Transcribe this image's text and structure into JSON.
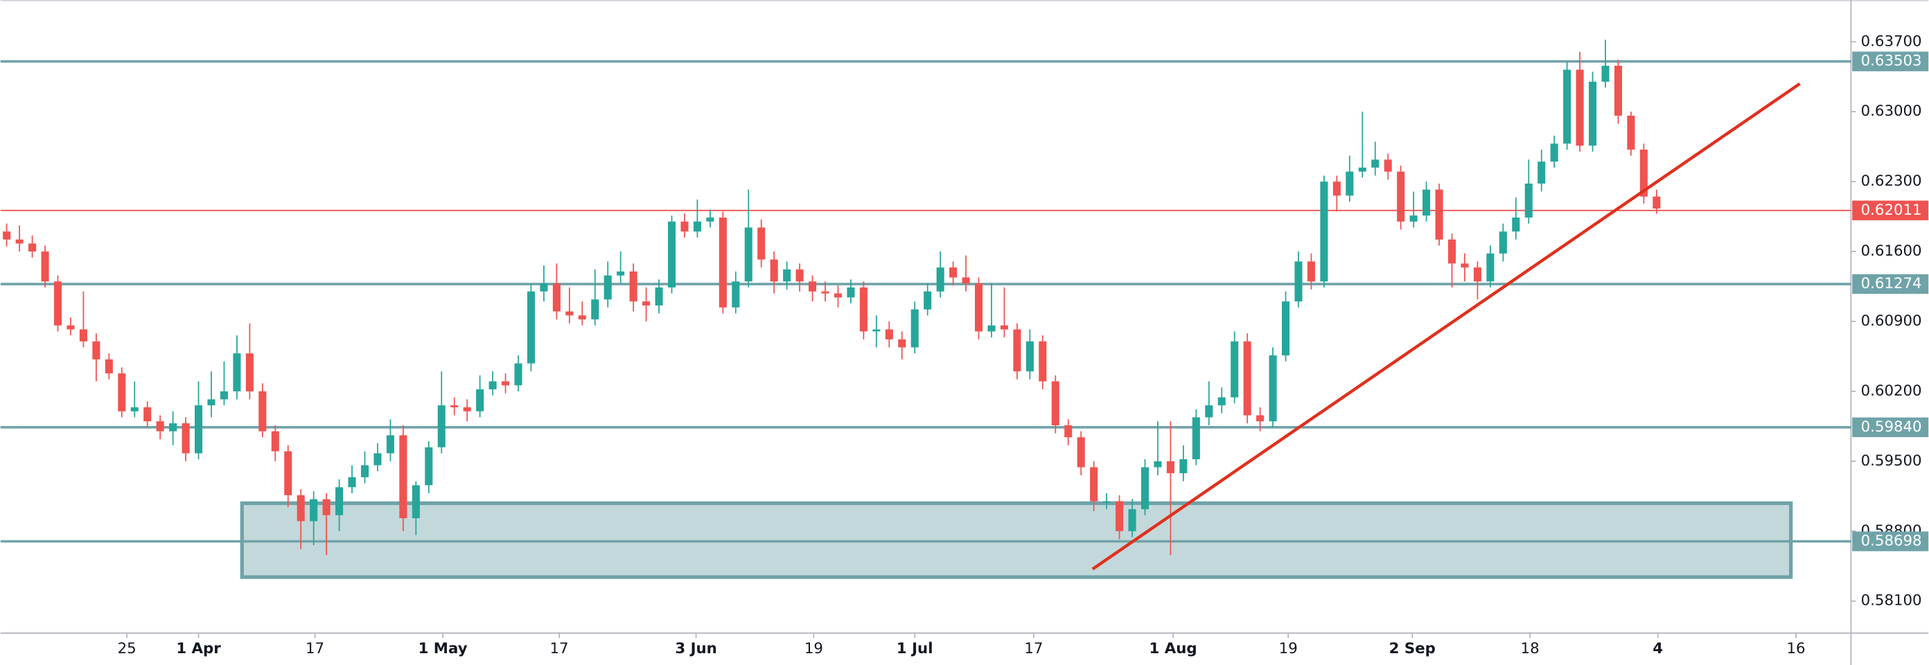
{
  "chart_data": {
    "type": "candlestick",
    "up_color": "#26a69a",
    "down_color": "#ef5350",
    "xlim": [
      -0.48,
      144.2
    ],
    "ylim": [
      0.5778,
      0.64118
    ],
    "xticks": [
      {
        "value": 9.4,
        "label": "25"
      },
      {
        "value": 15.0,
        "label": "1 Apr",
        "bold": true
      },
      {
        "value": 24.1,
        "label": "17"
      },
      {
        "value": 34.1,
        "label": "1 May",
        "bold": true
      },
      {
        "value": 43.2,
        "label": "17"
      },
      {
        "value": 53.9,
        "label": "3 Jun",
        "bold": true
      },
      {
        "value": 63.1,
        "label": "19"
      },
      {
        "value": 71.0,
        "label": "1 Jul",
        "bold": true
      },
      {
        "value": 80.3,
        "label": "17"
      },
      {
        "value": 91.2,
        "label": "1 Aug",
        "bold": true
      },
      {
        "value": 100.2,
        "label": "19"
      },
      {
        "value": 109.9,
        "label": "2 Sep",
        "bold": true
      },
      {
        "value": 119.1,
        "label": "18"
      },
      {
        "value": 129.1,
        "label": "4",
        "bold": true
      },
      {
        "value": 139.9,
        "label": "16"
      }
    ],
    "yticks": [
      {
        "value": 0.637,
        "label": "0.63700"
      },
      {
        "value": 0.63,
        "label": "0.63000"
      },
      {
        "value": 0.623,
        "label": "0.62300"
      },
      {
        "value": 0.616,
        "label": "0.61600"
      },
      {
        "value": 0.609,
        "label": "0.60900"
      },
      {
        "value": 0.602,
        "label": "0.60200"
      },
      {
        "value": 0.595,
        "label": "0.59500"
      },
      {
        "value": 0.588,
        "label": "0.58800"
      },
      {
        "value": 0.581,
        "label": "0.58100"
      }
    ],
    "levels": [
      {
        "value": 0.63503,
        "label": "0.63503",
        "color": "#6fa3a8"
      },
      {
        "value": 0.62011,
        "label": "0.62011",
        "color": "#ef5350"
      },
      {
        "value": 0.61274,
        "label": "0.61274",
        "color": "#6fa3a8"
      },
      {
        "value": 0.5984,
        "label": "0.59840",
        "color": "#6fa3a8"
      },
      {
        "value": 0.58698,
        "label": "0.58698",
        "color": "#6fa3a8"
      }
    ],
    "zone": {
      "x": [
        18.4,
        139.5
      ],
      "y": [
        0.5834,
        0.5908
      ],
      "color": "#6fa3a8"
    },
    "trendline": {
      "x": [
        84.9,
        140.2
      ],
      "y": [
        0.5842,
        0.6328
      ],
      "color": "#e0301e"
    },
    "ohlc": [
      [
        0.618,
        0.6188,
        0.6165,
        0.6172
      ],
      [
        0.6172,
        0.6186,
        0.616,
        0.6168
      ],
      [
        0.6168,
        0.6176,
        0.6154,
        0.616
      ],
      [
        0.616,
        0.6166,
        0.6124,
        0.613
      ],
      [
        0.613,
        0.6136,
        0.608,
        0.6086
      ],
      [
        0.6086,
        0.6094,
        0.6076,
        0.6082
      ],
      [
        0.6082,
        0.612,
        0.6064,
        0.607
      ],
      [
        0.607,
        0.6078,
        0.603,
        0.6052
      ],
      [
        0.6052,
        0.6058,
        0.6032,
        0.6038
      ],
      [
        0.6038,
        0.6044,
        0.5994,
        0.6
      ],
      [
        0.6,
        0.603,
        0.5994,
        0.6004
      ],
      [
        0.6004,
        0.601,
        0.5984,
        0.599
      ],
      [
        0.599,
        0.5996,
        0.5972,
        0.598
      ],
      [
        0.598,
        0.6,
        0.5966,
        0.5988
      ],
      [
        0.5988,
        0.5994,
        0.595,
        0.5958
      ],
      [
        0.5958,
        0.603,
        0.5952,
        0.6006
      ],
      [
        0.6006,
        0.604,
        0.5994,
        0.6012
      ],
      [
        0.6012,
        0.605,
        0.6006,
        0.602
      ],
      [
        0.602,
        0.6076,
        0.6012,
        0.6058
      ],
      [
        0.6058,
        0.6088,
        0.6012,
        0.602
      ],
      [
        0.602,
        0.6028,
        0.5974,
        0.598
      ],
      [
        0.598,
        0.5986,
        0.595,
        0.596
      ],
      [
        0.596,
        0.5966,
        0.5904,
        0.5916
      ],
      [
        0.5916,
        0.5922,
        0.5862,
        0.589
      ],
      [
        0.589,
        0.592,
        0.5866,
        0.5912
      ],
      [
        0.5912,
        0.5918,
        0.5856,
        0.5896
      ],
      [
        0.5896,
        0.5932,
        0.588,
        0.5924
      ],
      [
        0.5924,
        0.5946,
        0.5918,
        0.5934
      ],
      [
        0.5934,
        0.596,
        0.5928,
        0.5946
      ],
      [
        0.5946,
        0.5968,
        0.594,
        0.5958
      ],
      [
        0.5958,
        0.5992,
        0.595,
        0.5976
      ],
      [
        0.5976,
        0.5986,
        0.588,
        0.5893
      ],
      [
        0.5893,
        0.593,
        0.5876,
        0.5926
      ],
      [
        0.5926,
        0.597,
        0.5918,
        0.5964
      ],
      [
        0.5964,
        0.604,
        0.5958,
        0.6006
      ],
      [
        0.6006,
        0.6014,
        0.5996,
        0.6004
      ],
      [
        0.6004,
        0.6012,
        0.599,
        0.6
      ],
      [
        0.6,
        0.6036,
        0.5994,
        0.6022
      ],
      [
        0.6022,
        0.604,
        0.6016,
        0.603
      ],
      [
        0.603,
        0.6038,
        0.6018,
        0.6026
      ],
      [
        0.6026,
        0.6056,
        0.602,
        0.6048
      ],
      [
        0.6048,
        0.6128,
        0.604,
        0.612
      ],
      [
        0.612,
        0.6146,
        0.611,
        0.6128
      ],
      [
        0.6128,
        0.6148,
        0.6092,
        0.61
      ],
      [
        0.61,
        0.6124,
        0.6088,
        0.6096
      ],
      [
        0.6096,
        0.611,
        0.6086,
        0.6092
      ],
      [
        0.6092,
        0.6142,
        0.6086,
        0.6112
      ],
      [
        0.6112,
        0.615,
        0.6104,
        0.6136
      ],
      [
        0.6136,
        0.616,
        0.6128,
        0.614
      ],
      [
        0.614,
        0.6148,
        0.61,
        0.611
      ],
      [
        0.611,
        0.6124,
        0.609,
        0.6106
      ],
      [
        0.6106,
        0.6132,
        0.6098,
        0.6124
      ],
      [
        0.6124,
        0.6196,
        0.6118,
        0.619
      ],
      [
        0.619,
        0.6198,
        0.6174,
        0.618
      ],
      [
        0.618,
        0.6212,
        0.6174,
        0.619
      ],
      [
        0.619,
        0.6202,
        0.6184,
        0.6194
      ],
      [
        0.6194,
        0.62,
        0.6098,
        0.6104
      ],
      [
        0.6104,
        0.614,
        0.6098,
        0.613
      ],
      [
        0.613,
        0.6222,
        0.6124,
        0.6184
      ],
      [
        0.6184,
        0.6192,
        0.6144,
        0.6152
      ],
      [
        0.6152,
        0.616,
        0.6118,
        0.613
      ],
      [
        0.613,
        0.615,
        0.6122,
        0.6142
      ],
      [
        0.6142,
        0.6148,
        0.612,
        0.613
      ],
      [
        0.613,
        0.6136,
        0.611,
        0.612
      ],
      [
        0.612,
        0.613,
        0.611,
        0.6118
      ],
      [
        0.6118,
        0.6126,
        0.6104,
        0.6114
      ],
      [
        0.6114,
        0.6132,
        0.6108,
        0.6124
      ],
      [
        0.6124,
        0.613,
        0.6072,
        0.608
      ],
      [
        0.608,
        0.6096,
        0.6064,
        0.6082
      ],
      [
        0.6082,
        0.609,
        0.6064,
        0.6072
      ],
      [
        0.6072,
        0.608,
        0.6052,
        0.6064
      ],
      [
        0.6064,
        0.611,
        0.6058,
        0.6102
      ],
      [
        0.6102,
        0.6128,
        0.6096,
        0.612
      ],
      [
        0.612,
        0.616,
        0.6114,
        0.6144
      ],
      [
        0.6144,
        0.615,
        0.6126,
        0.6134
      ],
      [
        0.6134,
        0.6156,
        0.612,
        0.6128
      ],
      [
        0.6128,
        0.6134,
        0.6072,
        0.608
      ],
      [
        0.608,
        0.6128,
        0.6074,
        0.6086
      ],
      [
        0.6086,
        0.6124,
        0.6074,
        0.6082
      ],
      [
        0.6082,
        0.6088,
        0.6032,
        0.604
      ],
      [
        0.604,
        0.6082,
        0.6032,
        0.607
      ],
      [
        0.607,
        0.6076,
        0.6022,
        0.603
      ],
      [
        0.603,
        0.6036,
        0.5978,
        0.5986
      ],
      [
        0.5986,
        0.5992,
        0.5966,
        0.5974
      ],
      [
        0.5974,
        0.598,
        0.5936,
        0.5944
      ],
      [
        0.5944,
        0.595,
        0.59,
        0.591
      ],
      [
        0.591,
        0.5918,
        0.5902,
        0.591
      ],
      [
        0.591,
        0.5916,
        0.5872,
        0.588
      ],
      [
        0.588,
        0.5912,
        0.5874,
        0.5902
      ],
      [
        0.5902,
        0.5952,
        0.5896,
        0.5944
      ],
      [
        0.5944,
        0.599,
        0.5936,
        0.595
      ],
      [
        0.595,
        0.599,
        0.5856,
        0.5938
      ],
      [
        0.5938,
        0.5966,
        0.593,
        0.5952
      ],
      [
        0.5952,
        0.6002,
        0.5946,
        0.5994
      ],
      [
        0.5994,
        0.603,
        0.5986,
        0.6006
      ],
      [
        0.6006,
        0.6024,
        0.5998,
        0.6014
      ],
      [
        0.6014,
        0.608,
        0.6008,
        0.607
      ],
      [
        0.607,
        0.6078,
        0.5988,
        0.5996
      ],
      [
        0.5996,
        0.6004,
        0.598,
        0.599
      ],
      [
        0.599,
        0.6064,
        0.5984,
        0.6056
      ],
      [
        0.6056,
        0.612,
        0.605,
        0.611
      ],
      [
        0.611,
        0.616,
        0.6104,
        0.615
      ],
      [
        0.615,
        0.6158,
        0.6122,
        0.613
      ],
      [
        0.613,
        0.6236,
        0.6124,
        0.623
      ],
      [
        0.623,
        0.6236,
        0.62,
        0.6216
      ],
      [
        0.6216,
        0.6256,
        0.621,
        0.624
      ],
      [
        0.624,
        0.63,
        0.6234,
        0.6244
      ],
      [
        0.6244,
        0.627,
        0.6236,
        0.6252
      ],
      [
        0.6252,
        0.6258,
        0.6232,
        0.624
      ],
      [
        0.624,
        0.6246,
        0.6182,
        0.619
      ],
      [
        0.619,
        0.622,
        0.6184,
        0.6196
      ],
      [
        0.6196,
        0.623,
        0.619,
        0.6222
      ],
      [
        0.6222,
        0.6228,
        0.6166,
        0.6172
      ],
      [
        0.6172,
        0.6178,
        0.6124,
        0.6148
      ],
      [
        0.6148,
        0.6158,
        0.613,
        0.6144
      ],
      [
        0.6144,
        0.615,
        0.6112,
        0.613
      ],
      [
        0.613,
        0.6166,
        0.6124,
        0.6158
      ],
      [
        0.6158,
        0.6188,
        0.615,
        0.618
      ],
      [
        0.618,
        0.6214,
        0.6172,
        0.6194
      ],
      [
        0.6194,
        0.6252,
        0.6188,
        0.6228
      ],
      [
        0.6228,
        0.6262,
        0.622,
        0.625
      ],
      [
        0.625,
        0.6276,
        0.6244,
        0.6268
      ],
      [
        0.6268,
        0.635,
        0.6262,
        0.6342
      ],
      [
        0.6342,
        0.636,
        0.626,
        0.6266
      ],
      [
        0.6266,
        0.634,
        0.626,
        0.633
      ],
      [
        0.633,
        0.6372,
        0.6324,
        0.6346
      ],
      [
        0.6346,
        0.6352,
        0.6288,
        0.6296
      ],
      [
        0.6296,
        0.63,
        0.6256,
        0.6262
      ],
      [
        0.6262,
        0.6268,
        0.6208,
        0.6215
      ],
      [
        0.6215,
        0.6222,
        0.6198,
        0.6203
      ]
    ]
  }
}
